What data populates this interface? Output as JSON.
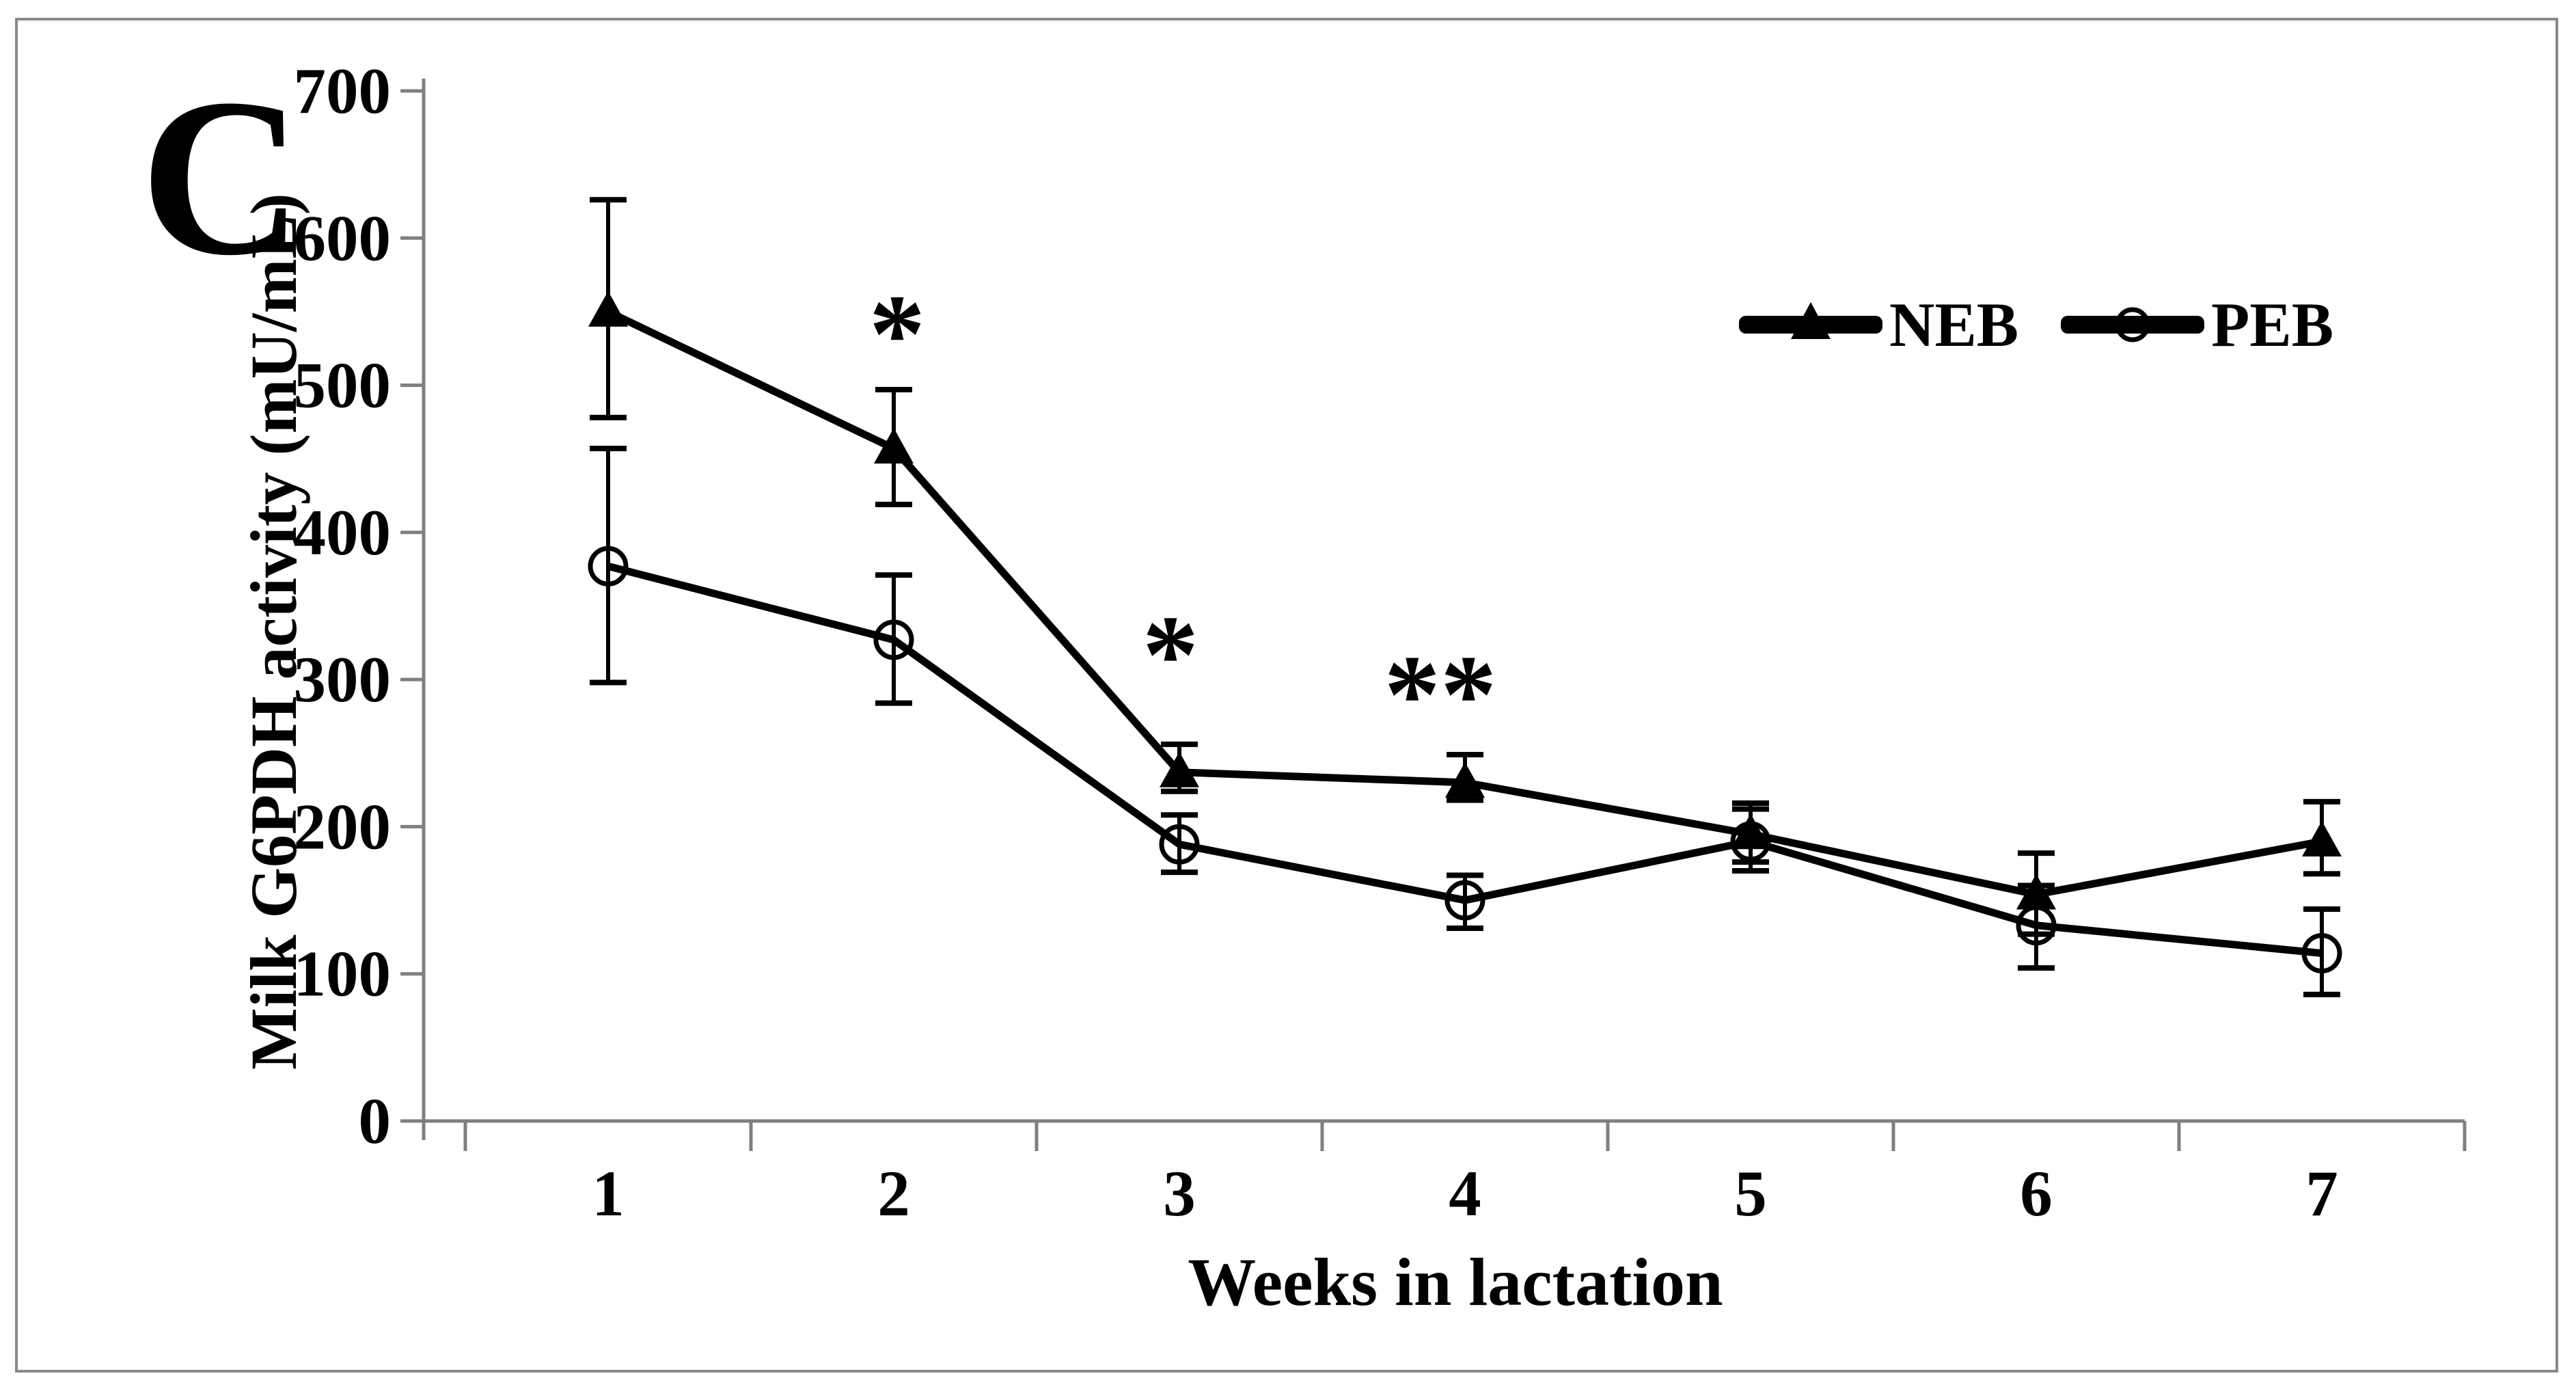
{
  "figure": {
    "panel_label": "C",
    "background_color": "#ffffff",
    "border_color": "#8a8a8a"
  },
  "chart_data": {
    "type": "line",
    "title": "",
    "xlabel": "Weeks in lactation",
    "ylabel": "Milk G6PDH activity (mU/mL)",
    "x_categories": [
      1,
      2,
      3,
      4,
      5,
      6,
      7
    ],
    "ylim": [
      0,
      700
    ],
    "yticks": [
      0,
      100,
      200,
      300,
      400,
      500,
      600,
      700
    ],
    "grid": false,
    "legend_position": "top-right-inside",
    "axis_color": "#7f7f7f",
    "series_color": "#000000",
    "series": [
      {
        "name": "NEB",
        "marker": "filled-triangle",
        "color": "#000000",
        "values": [
          550,
          457,
          237,
          230,
          195,
          154,
          190
        ],
        "err_high": [
          626,
          497,
          256,
          249,
          216,
          182,
          217
        ],
        "err_low": [
          478,
          419,
          224,
          218,
          176,
          127,
          168
        ]
      },
      {
        "name": "PEB",
        "marker": "open-circle",
        "color": "#000000",
        "values": [
          377,
          327,
          188,
          150,
          190,
          133,
          114
        ],
        "err_high": [
          457,
          371,
          208,
          167,
          212,
          160,
          144
        ],
        "err_low": [
          298,
          284,
          169,
          131,
          170,
          104,
          86
        ]
      }
    ],
    "annotations": [
      {
        "text": "*",
        "week": 2,
        "level": 537,
        "dx": 5
      },
      {
        "text": "*",
        "week": 3,
        "level": 319,
        "dx": -13
      },
      {
        "text": "**",
        "week": 4,
        "level": 292,
        "dx": -36
      }
    ]
  },
  "legend": {
    "items": [
      {
        "label": "NEB",
        "marker": "filled-triangle"
      },
      {
        "label": "PEB",
        "marker": "open-circle"
      }
    ]
  }
}
